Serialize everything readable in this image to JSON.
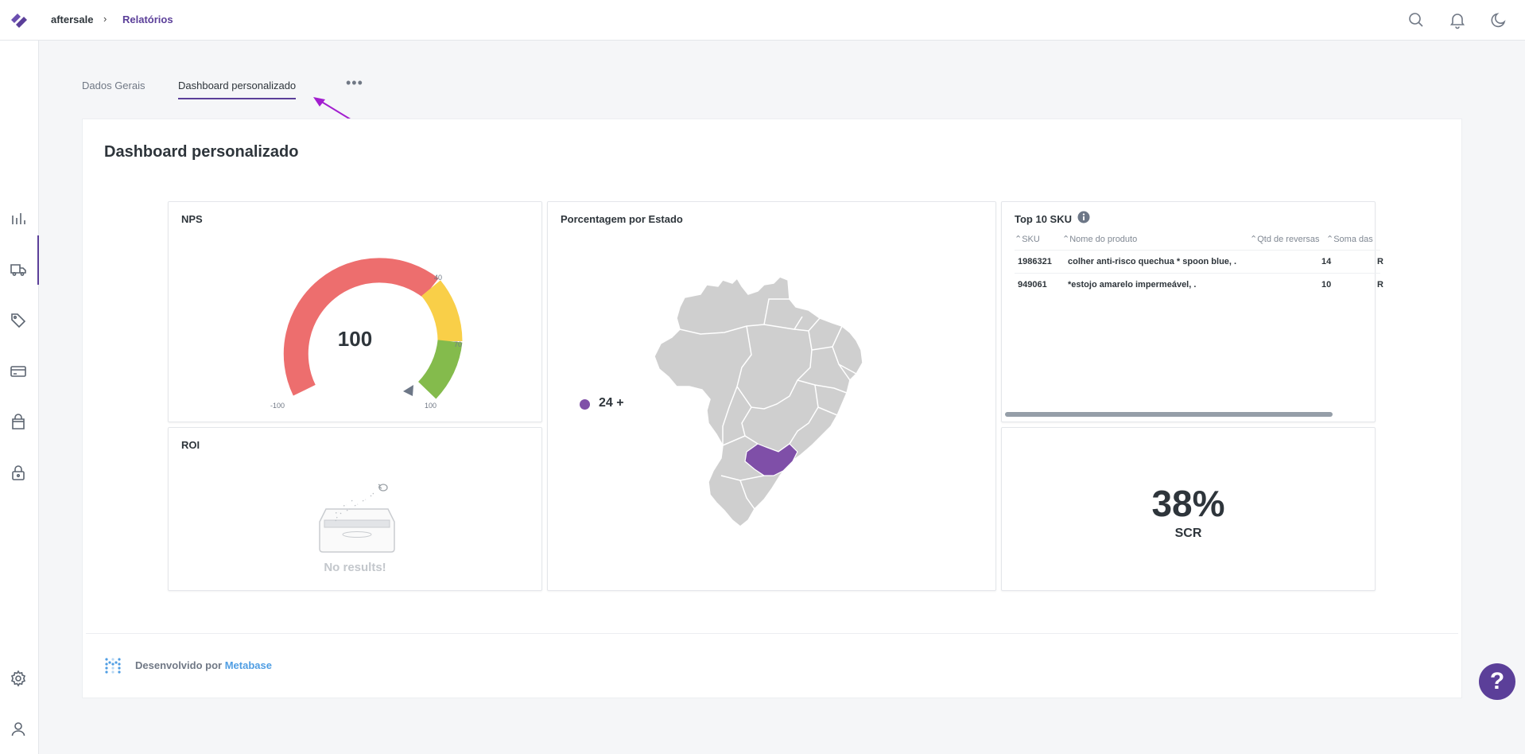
{
  "header": {
    "breadcrumb_root": "aftersale",
    "breadcrumb_separator": "›",
    "breadcrumb_current": "Relatórios",
    "accent_color": "#5b3f99"
  },
  "tabs": [
    {
      "label": "Dados Gerais",
      "active": false
    },
    {
      "label": "Dashboard personalizado",
      "active": true
    }
  ],
  "dashboard": {
    "title": "Dashboard personalizado",
    "nps": {
      "title": "NPS",
      "value": "100",
      "ticks": [
        "-100",
        "40",
        "70",
        "100"
      ],
      "segment_colors": [
        "#ed6e6e",
        "#f9cf48",
        "#84bb4c"
      ]
    },
    "roi": {
      "title": "ROI",
      "empty_text": "No results!"
    },
    "map": {
      "title": "Porcentagem por Estado",
      "legend_label": "24 +",
      "highlight_color": "#7f4fa8"
    },
    "top_sku": {
      "title": "Top 10 SKU",
      "columns": [
        "SKU",
        "Nome do produto",
        "Qtd de reversas",
        "Soma das"
      ],
      "rows": [
        {
          "sku": "1986321",
          "name": "colher anti-risco quechua * spoon blue, .",
          "qty": "14",
          "sum": "R$"
        },
        {
          "sku": "949061",
          "name": "*estojo amarelo impermeável, .",
          "qty": "10",
          "sum": "R$"
        }
      ]
    },
    "scr": {
      "value": "38%",
      "label": "SCR"
    }
  },
  "footer": {
    "text": "Desenvolvido por",
    "link": "Metabase"
  },
  "help": {
    "label": "?"
  }
}
